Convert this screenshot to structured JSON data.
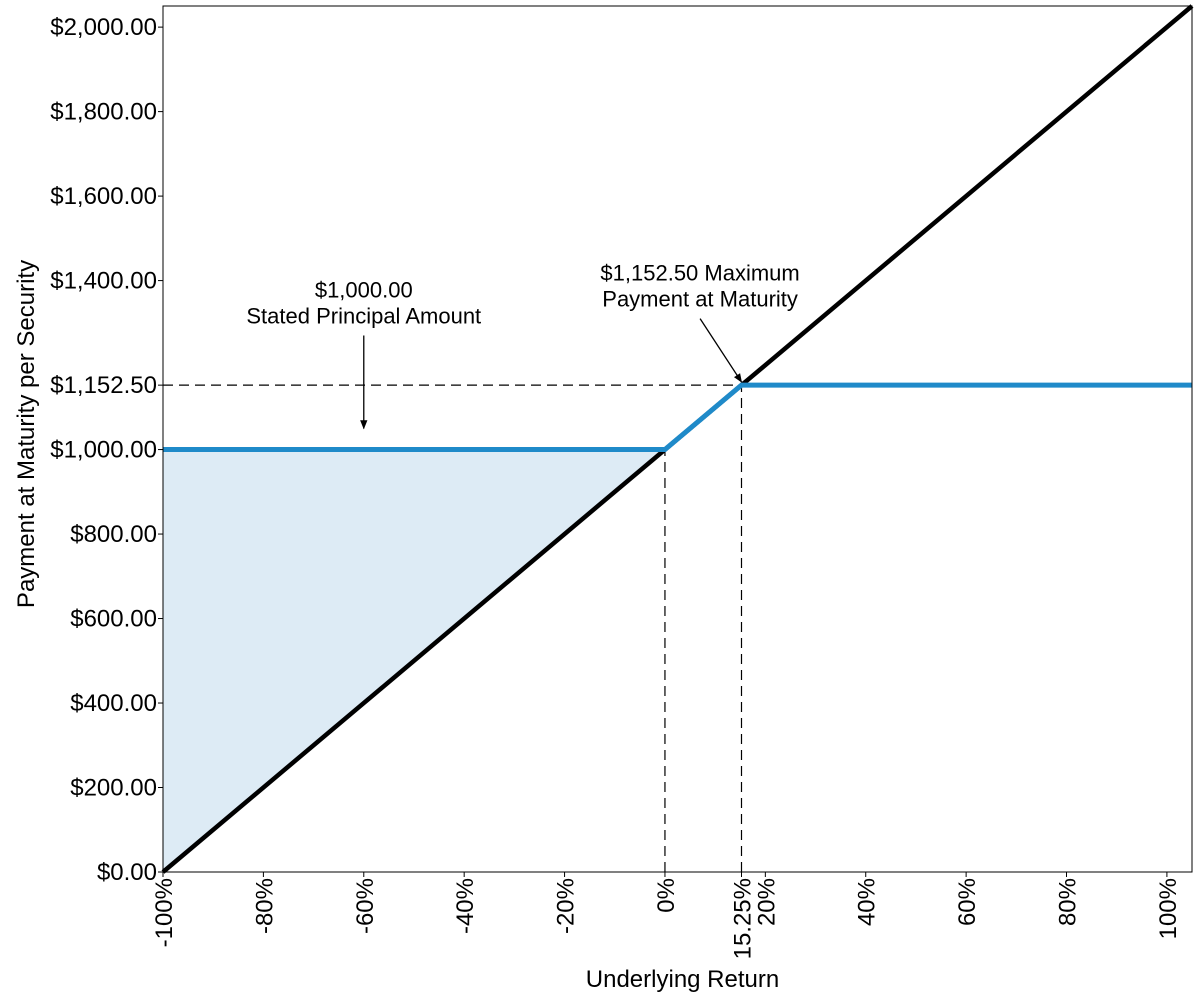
{
  "chart_data": {
    "type": "line",
    "xlabel": "Underlying Return",
    "ylabel": "Payment at Maturity per Security",
    "xlim": [
      -100,
      105
    ],
    "ylim": [
      0,
      2050
    ],
    "grid": false,
    "x_ticks": [
      {
        "value": -100,
        "label": "-100%"
      },
      {
        "value": -80,
        "label": "-80%"
      },
      {
        "value": -60,
        "label": "-60%"
      },
      {
        "value": -40,
        "label": "-40%"
      },
      {
        "value": -20,
        "label": "-20%"
      },
      {
        "value": 0,
        "label": "0%"
      },
      {
        "value": 15.25,
        "label": "15.25%"
      },
      {
        "value": 20,
        "label": "20%"
      },
      {
        "value": 40,
        "label": "40%"
      },
      {
        "value": 60,
        "label": "60%"
      },
      {
        "value": 80,
        "label": "80%"
      },
      {
        "value": 100,
        "label": "100%"
      }
    ],
    "y_ticks": [
      {
        "value": 0,
        "label": "$0.00"
      },
      {
        "value": 200,
        "label": "$200.00"
      },
      {
        "value": 400,
        "label": "$400.00"
      },
      {
        "value": 600,
        "label": "$600.00"
      },
      {
        "value": 800,
        "label": "$800.00"
      },
      {
        "value": 1000,
        "label": "$1,000.00"
      },
      {
        "value": 1152.5,
        "label": "$1,152.50"
      },
      {
        "value": 1400,
        "label": "$1,400.00"
      },
      {
        "value": 1600,
        "label": "$1,600.00"
      },
      {
        "value": 1800,
        "label": "$1,800.00"
      },
      {
        "value": 2000,
        "label": "$2,000.00"
      }
    ],
    "series": [
      {
        "role": "underlying",
        "color": "#000000",
        "x": [
          -100,
          105
        ],
        "y": [
          0,
          2050
        ]
      },
      {
        "role": "security",
        "color": "#1f8ac9",
        "x": [
          -100,
          0,
          15.25,
          105
        ],
        "y": [
          1000,
          1000,
          1152.5,
          1152.5
        ]
      }
    ],
    "shaded_region": {
      "color": "#ddebf5",
      "x": [
        -100,
        0,
        -100
      ],
      "y": [
        0,
        1000,
        1000
      ]
    },
    "reference_lines": [
      {
        "orientation": "horizontal",
        "value": 1152.5,
        "from": -100,
        "to": 15.25,
        "style": "dashed"
      },
      {
        "orientation": "vertical",
        "value": 0,
        "from": 0,
        "to": 1000,
        "style": "dashed"
      },
      {
        "orientation": "vertical",
        "value": 15.25,
        "from": 0,
        "to": 1152.5,
        "style": "dashed"
      }
    ],
    "annotations": [
      {
        "lines": [
          "$1,000.00",
          "Stated Principal Amount"
        ],
        "text_x": -60,
        "text_y": 1360,
        "arrow_from": [
          -60,
          1270
        ],
        "arrow_to": [
          -60,
          1050
        ]
      },
      {
        "lines": [
          "$1,152.50 Maximum",
          "Payment at Maturity"
        ],
        "text_x": 7,
        "text_y": 1400,
        "arrow_from": [
          7,
          1310
        ],
        "arrow_to": [
          15.25,
          1160
        ]
      }
    ]
  }
}
